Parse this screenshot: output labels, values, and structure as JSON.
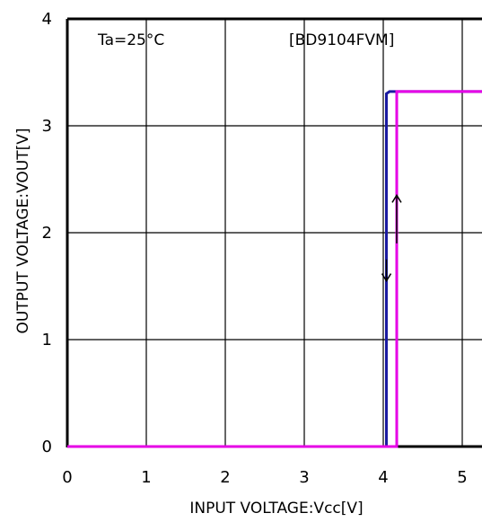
{
  "chart_data": {
    "type": "line",
    "title": "",
    "xlabel": "INPUT VOLTAGE:Vcc[V]",
    "ylabel": "OUTPUT VOLTAGE:VOUT[V]",
    "xlim": [
      0,
      5.5
    ],
    "ylim": [
      0,
      4
    ],
    "x_ticks": [
      "0",
      "1",
      "2",
      "3",
      "4",
      "5"
    ],
    "y_ticks": [
      "0",
      "1",
      "2",
      "3",
      "4"
    ],
    "grid": true,
    "annotations": {
      "condition": "Ta=25°C",
      "part_number": "[BD9104FVM]"
    },
    "series": [
      {
        "name": "",
        "color": "#1a1aa0",
        "x": [
          0,
          4.04,
          4.04,
          4.08,
          5.5
        ],
        "y": [
          0,
          0,
          3.3,
          3.32,
          3.32
        ]
      },
      {
        "name": "",
        "color": "#e600e6",
        "x": [
          0,
          4.17,
          4.17,
          5.5
        ],
        "y": [
          0,
          0,
          3.32,
          3.32
        ]
      }
    ],
    "hysteresis_arrows": [
      {
        "direction": "up",
        "x": 4.17,
        "y_from": 1.9,
        "y_to": 2.35
      },
      {
        "direction": "down",
        "x": 4.04,
        "y_from": 1.75,
        "y_to": 1.55
      }
    ]
  }
}
